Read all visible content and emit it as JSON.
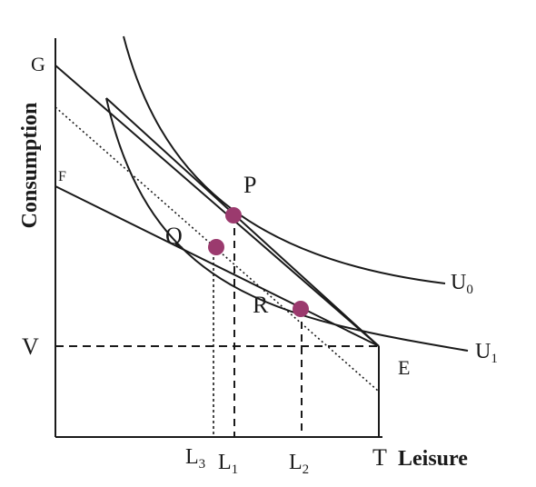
{
  "axes": {
    "x_title": "Leisure",
    "y_title": "Consumption"
  },
  "curves": {
    "u0": "U",
    "u0_sub": "0",
    "u1": "U",
    "u1_sub": "1"
  },
  "points": {
    "g": "G",
    "f": "F",
    "v": "V",
    "e": "E",
    "t": "T",
    "p": "P",
    "q": "Q",
    "r": "R"
  },
  "ticks": {
    "l3": "L",
    "l3_sub": "3",
    "l1": "L",
    "l1_sub": "1",
    "l2": "L",
    "l2_sub": "2"
  },
  "colors": {
    "ink": "#1a1a1a",
    "marker": "#9b3a6e"
  }
}
